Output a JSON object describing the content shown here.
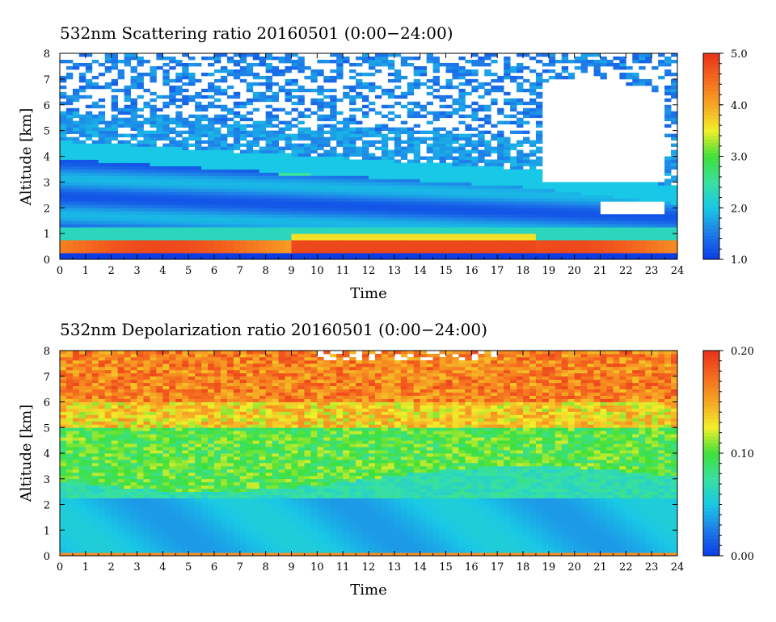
{
  "chart_data": [
    {
      "type": "heatmap",
      "title": "532nm Scattering ratio  20160501 (0:00−24:00)",
      "xlabel": "Time",
      "ylabel": "Altitude [km]",
      "xlim": [
        0,
        24
      ],
      "ylim": [
        0,
        8
      ],
      "x_ticks": [
        0,
        1,
        2,
        3,
        4,
        5,
        6,
        7,
        8,
        9,
        10,
        11,
        12,
        13,
        14,
        15,
        16,
        17,
        18,
        19,
        20,
        21,
        22,
        23,
        24
      ],
      "y_ticks": [
        0,
        1,
        2,
        3,
        4,
        5,
        6,
        7,
        8
      ],
      "colorbar": {
        "range": [
          1.0,
          5.0
        ],
        "ticks": [
          1.0,
          2.0,
          3.0,
          4.0,
          5.0
        ],
        "tick_labels": [
          "1.0",
          "2.0",
          "3.0",
          "4.0",
          "5.0"
        ],
        "colors": [
          "#0a3ce6",
          "#1e7ae8",
          "#19c8e6",
          "#39e0a0",
          "#3fe03a",
          "#f2ef2a",
          "#f6a624",
          "#f56a1e",
          "#e8321a"
        ]
      },
      "features": {
        "surface_layer": {
          "altitude_km": [
            0.2,
            0.8
          ],
          "ratio": 4.5
        },
        "boundary_layer_top_km": {
          "t0": 4.6,
          "t9": 3.8,
          "t18": 3.2,
          "t24": 2.9
        },
        "clear_region": {
          "time_h": [
            19,
            24
          ],
          "altitude_km": [
            3.0,
            7.0
          ]
        },
        "noise_above_km": 5.5
      }
    },
    {
      "type": "heatmap",
      "title": "532nm Depolarization ratio  20160501 (0:00−24:00)",
      "xlabel": "Time",
      "ylabel": "Altitude [km]",
      "xlim": [
        0,
        24
      ],
      "ylim": [
        0,
        8
      ],
      "x_ticks": [
        0,
        1,
        2,
        3,
        4,
        5,
        6,
        7,
        8,
        9,
        10,
        11,
        12,
        13,
        14,
        15,
        16,
        17,
        18,
        19,
        20,
        21,
        22,
        23,
        24
      ],
      "y_ticks": [
        0,
        1,
        2,
        3,
        4,
        5,
        6,
        7,
        8
      ],
      "colorbar": {
        "range": [
          0.0,
          0.2
        ],
        "ticks": [
          0.0,
          0.1,
          0.2
        ],
        "tick_labels": [
          "0.00",
          "0.10",
          "0.20"
        ],
        "colors": [
          "#0a3ce6",
          "#1e7ae8",
          "#19c8e6",
          "#39e0a0",
          "#3fe03a",
          "#f2ef2a",
          "#f6a624",
          "#f56a1e",
          "#e8321a"
        ]
      },
      "features": {
        "surface_layer": {
          "altitude_km": [
            0.0,
            0.2
          ],
          "ratio": 0.16
        },
        "lower_layer": {
          "altitude_km": [
            0.2,
            2.2
          ],
          "ratio": 0.045
        },
        "mid_layer": {
          "altitude_km": [
            2.2,
            4.5
          ],
          "ratio": 0.085
        },
        "upper_layer": {
          "altitude_km": [
            5.5,
            8.0
          ],
          "ratio": 0.17
        }
      }
    }
  ]
}
